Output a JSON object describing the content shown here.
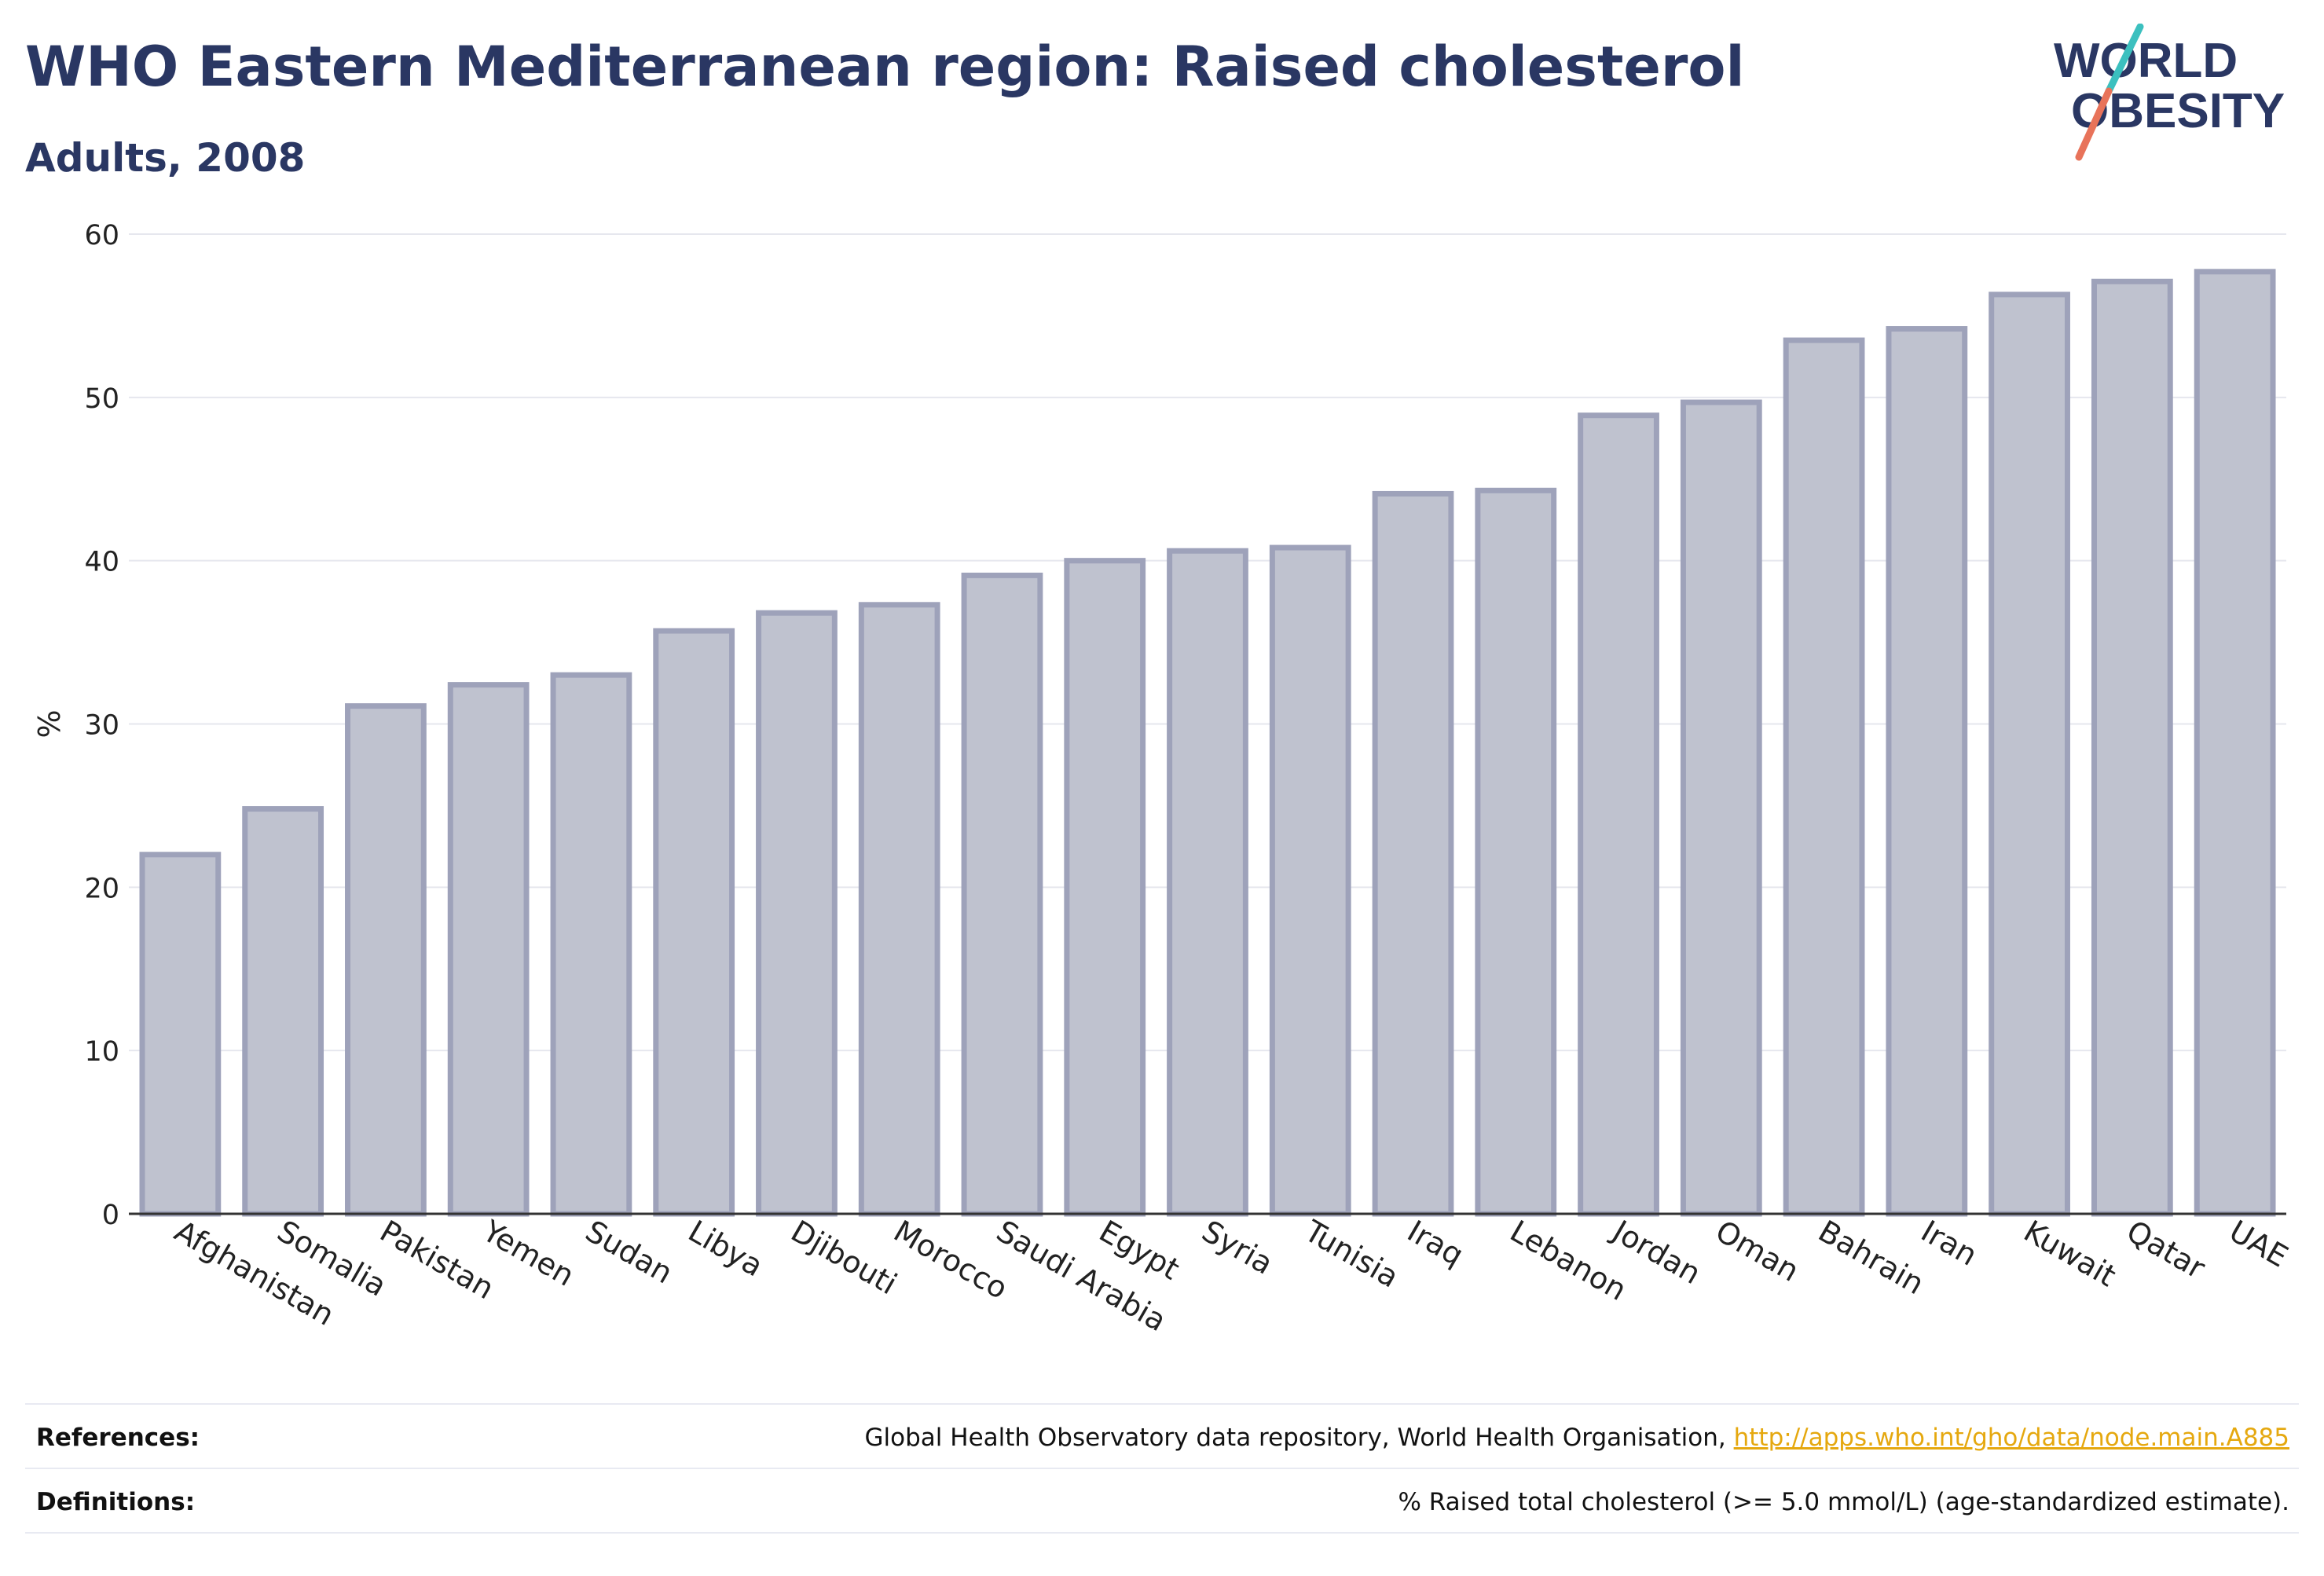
{
  "header": {
    "title": "WHO Eastern Mediterranean region: Raised cholesterol",
    "subtitle": "Adults, 2008"
  },
  "logo": {
    "line1": "WORLD",
    "line2": "OBESITY",
    "text_color": "#2a3763",
    "slash_top_color": "#3cc0bf",
    "slash_bottom_color": "#e8735a"
  },
  "chart_data": {
    "type": "bar",
    "title": "",
    "xlabel": "",
    "ylabel": "%",
    "ylim": [
      0,
      60
    ],
    "yticks": [
      0,
      10,
      20,
      30,
      40,
      50,
      60
    ],
    "grid": true,
    "bar_fill": "#bfc2cf",
    "bar_stroke": "#9ea2ba",
    "categories": [
      "Afghanistan",
      "Somalia",
      "Pakistan",
      "Yemen",
      "Sudan",
      "Libya",
      "Djibouti",
      "Morocco",
      "Saudi Arabia",
      "Egypt",
      "Syria",
      "Tunisia",
      "Iraq",
      "Lebanon",
      "Jordan",
      "Oman",
      "Bahrain",
      "Iran",
      "Kuwait",
      "Qatar",
      "UAE"
    ],
    "values": [
      22.0,
      24.8,
      31.1,
      32.4,
      33.0,
      35.7,
      36.8,
      37.3,
      39.1,
      40.0,
      40.6,
      40.8,
      44.1,
      44.3,
      48.9,
      49.7,
      53.5,
      54.2,
      56.3,
      57.1,
      57.7
    ]
  },
  "footer": {
    "references_label": "References:",
    "references_text": "Global Health Observatory data repository, World Health Organisation, ",
    "references_link": "http://apps.who.int/gho/data/node.main.A885",
    "definitions_label": "Definitions:",
    "definitions_text": "% Raised total cholesterol (>= 5.0 mmol/L) (age-standardized estimate)."
  }
}
